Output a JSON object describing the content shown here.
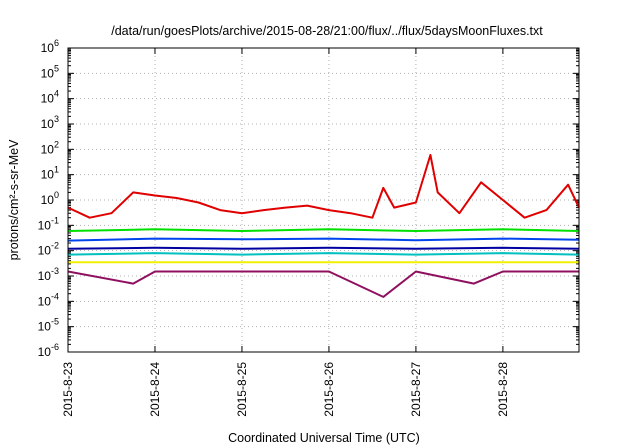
{
  "chart_data": {
    "type": "line",
    "title": "/data/run/goesPlots/archive/2015-08-28/21:00/flux/../flux/5daysMoonFluxes.txt",
    "xlabel": "Coordinated Universal Time (UTC)",
    "ylabel": "protons/cm²-s-sr-MeV",
    "y_scale": "log",
    "ylim": [
      1e-06,
      1000000.0
    ],
    "xlim": [
      "2015-08-23",
      "2015-08-28T21:00"
    ],
    "grid": true,
    "legend": "none",
    "x_ticks": [
      "2015-8-23",
      "2015-8-24",
      "2015-8-25",
      "2015-8-26",
      "2015-8-27",
      "2015-8-28"
    ],
    "y_ticks": [
      {
        "exp": "-6",
        "base": "10"
      },
      {
        "exp": "-5",
        "base": "10"
      },
      {
        "exp": "-4",
        "base": "10"
      },
      {
        "exp": "-3",
        "base": "10"
      },
      {
        "exp": "-2",
        "base": "10"
      },
      {
        "exp": "-1",
        "base": "10"
      },
      {
        "exp": "0",
        "base": "10"
      },
      {
        "exp": "1",
        "base": "10"
      },
      {
        "exp": "2",
        "base": "10"
      },
      {
        "exp": "3",
        "base": "10"
      },
      {
        "exp": "4",
        "base": "10"
      },
      {
        "exp": "5",
        "base": "10"
      },
      {
        "exp": "6",
        "base": "10"
      }
    ],
    "series": [
      {
        "color": "#e00000",
        "x": [
          "2015-08-23T00:00",
          "2015-08-23T06:00",
          "2015-08-23T12:00",
          "2015-08-23T18:00",
          "2015-08-24T00:00",
          "2015-08-24T06:00",
          "2015-08-24T12:00",
          "2015-08-24T18:00",
          "2015-08-25T00:00",
          "2015-08-25T06:00",
          "2015-08-25T12:00",
          "2015-08-25T18:00",
          "2015-08-26T00:00",
          "2015-08-26T06:00",
          "2015-08-26T12:00",
          "2015-08-26T15:00",
          "2015-08-26T18:00",
          "2015-08-27T00:00",
          "2015-08-27T04:00",
          "2015-08-27T06:00",
          "2015-08-27T12:00",
          "2015-08-27T18:00",
          "2015-08-28T00:00",
          "2015-08-28T06:00",
          "2015-08-28T12:00",
          "2015-08-28T18:00",
          "2015-08-28T21:00"
        ],
        "y": [
          0.5,
          0.2,
          0.3,
          2,
          1.5,
          1.2,
          0.8,
          0.4,
          0.3,
          0.4,
          0.5,
          0.6,
          0.4,
          0.3,
          0.2,
          3,
          0.5,
          0.8,
          60,
          2,
          0.3,
          5,
          1,
          0.2,
          0.4,
          4,
          0.5
        ]
      },
      {
        "color": "#00e000",
        "x": [
          "2015-08-23T00:00",
          "2015-08-24T00:00",
          "2015-08-25T00:00",
          "2015-08-26T00:00",
          "2015-08-27T00:00",
          "2015-08-28T00:00",
          "2015-08-28T21:00"
        ],
        "y": [
          0.06,
          0.07,
          0.06,
          0.07,
          0.06,
          0.07,
          0.06
        ]
      },
      {
        "color": "#0044ee",
        "x": [
          "2015-08-23T00:00",
          "2015-08-24T00:00",
          "2015-08-25T00:00",
          "2015-08-26T00:00",
          "2015-08-27T00:00",
          "2015-08-28T00:00",
          "2015-08-28T21:00"
        ],
        "y": [
          0.025,
          0.03,
          0.028,
          0.03,
          0.026,
          0.03,
          0.027
        ]
      },
      {
        "color": "#0000a0",
        "x": [
          "2015-08-23T00:00",
          "2015-08-24T00:00",
          "2015-08-25T00:00",
          "2015-08-26T00:00",
          "2015-08-27T00:00",
          "2015-08-28T00:00",
          "2015-08-28T21:00"
        ],
        "y": [
          0.012,
          0.013,
          0.012,
          0.013,
          0.012,
          0.013,
          0.012
        ]
      },
      {
        "color": "#00c0c0",
        "x": [
          "2015-08-23T00:00",
          "2015-08-24T00:00",
          "2015-08-25T00:00",
          "2015-08-26T00:00",
          "2015-08-27T00:00",
          "2015-08-28T00:00",
          "2015-08-28T21:00"
        ],
        "y": [
          0.007,
          0.008,
          0.007,
          0.008,
          0.007,
          0.008,
          0.007
        ]
      },
      {
        "color": "#f0f000",
        "x": [
          "2015-08-23T00:00",
          "2015-08-24T00:00",
          "2015-08-25T00:00",
          "2015-08-26T00:00",
          "2015-08-27T00:00",
          "2015-08-28T00:00",
          "2015-08-28T21:00"
        ],
        "y": [
          0.0035,
          0.0035,
          0.0035,
          0.0035,
          0.0035,
          0.0035,
          0.0035
        ]
      },
      {
        "color": "#901060",
        "x": [
          "2015-08-23T00:00",
          "2015-08-23T18:00",
          "2015-08-24T00:00",
          "2015-08-25T00:00",
          "2015-08-26T00:00",
          "2015-08-26T15:00",
          "2015-08-27T00:00",
          "2015-08-27T16:00",
          "2015-08-28T00:00",
          "2015-08-28T21:00"
        ],
        "y": [
          0.0015,
          0.0005,
          0.0015,
          0.0015,
          0.0015,
          0.00015,
          0.0015,
          0.0005,
          0.0015,
          0.0015
        ]
      }
    ]
  }
}
